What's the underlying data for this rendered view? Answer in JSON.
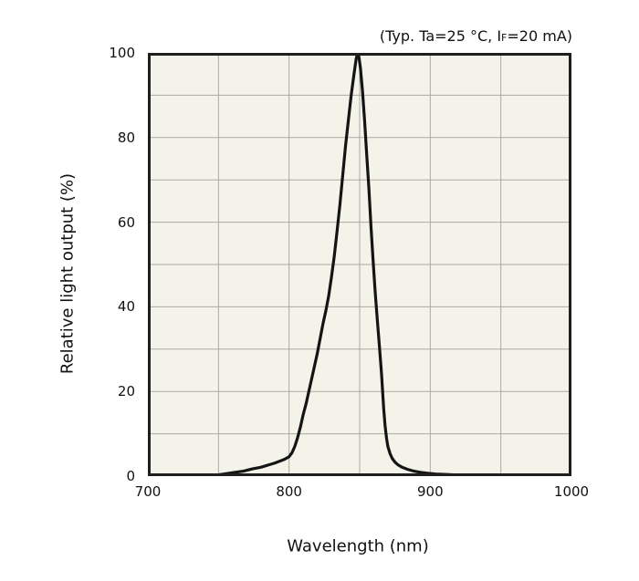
{
  "annotation": {
    "prefix": "(Typ. Ta=25 °C, I",
    "sub": "F",
    "suffix": "=20 mA)"
  },
  "chart_data": {
    "type": "line",
    "title": "(Typ. Ta=25 °C, IF=20 mA)",
    "xlabel": "Wavelength (nm)",
    "ylabel": "Relative light output (%)",
    "xlim": [
      700,
      1000
    ],
    "ylim": [
      0,
      100
    ],
    "x_tick_labels": [
      700,
      800,
      900,
      1000
    ],
    "y_tick_labels": [
      0,
      20,
      40,
      60,
      80,
      100
    ],
    "x_grid_interval_nm": 50,
    "y_grid_interval_pct": 10,
    "grid": "on",
    "legend": "none",
    "peak_wavelength_nm": 848,
    "peak_relative_output_pct": 100,
    "fwhm_nm": 29,
    "colors": {
      "plot_bg": "#f4f3ea",
      "grid": "#aaaaa2",
      "curve": "#141414",
      "border": "#1f1f1f",
      "text": "#111111"
    },
    "series": [
      {
        "name": "Relative light output",
        "points": [
          [
            738,
            0
          ],
          [
            744,
            0.1
          ],
          [
            750,
            0.3
          ],
          [
            756,
            0.6
          ],
          [
            762,
            0.9
          ],
          [
            768,
            1.2
          ],
          [
            774,
            1.7
          ],
          [
            780,
            2.1
          ],
          [
            786,
            2.7
          ],
          [
            790,
            3.1
          ],
          [
            794,
            3.6
          ],
          [
            797,
            4.0
          ],
          [
            800,
            4.6
          ],
          [
            802,
            5.5
          ],
          [
            804,
            7
          ],
          [
            806,
            9
          ],
          [
            808,
            11.5
          ],
          [
            810,
            14.5
          ],
          [
            812,
            17
          ],
          [
            814,
            20
          ],
          [
            816,
            23
          ],
          [
            818,
            26
          ],
          [
            820,
            29
          ],
          [
            822,
            32.5
          ],
          [
            824,
            36
          ],
          [
            826,
            39
          ],
          [
            828,
            42.5
          ],
          [
            830,
            47
          ],
          [
            832,
            52
          ],
          [
            834,
            58
          ],
          [
            836,
            64
          ],
          [
            838,
            71
          ],
          [
            840,
            78
          ],
          [
            842,
            84
          ],
          [
            844,
            90
          ],
          [
            846,
            95
          ],
          [
            847.5,
            98.5
          ],
          [
            848.5,
            100
          ],
          [
            849.5,
            99
          ],
          [
            850.5,
            96.5
          ],
          [
            852,
            91
          ],
          [
            853.5,
            84
          ],
          [
            855,
            76
          ],
          [
            856.5,
            68
          ],
          [
            858,
            59
          ],
          [
            859.5,
            51
          ],
          [
            861,
            43.5
          ],
          [
            862.5,
            37
          ],
          [
            864,
            30.5
          ],
          [
            865.5,
            24
          ],
          [
            867,
            16
          ],
          [
            868,
            12
          ],
          [
            869,
            9
          ],
          [
            870,
            7
          ],
          [
            871.5,
            5.3
          ],
          [
            873,
            4.2
          ],
          [
            875,
            3.3
          ],
          [
            877,
            2.7
          ],
          [
            880,
            2.1
          ],
          [
            884,
            1.6
          ],
          [
            888,
            1.2
          ],
          [
            893,
            0.9
          ],
          [
            898,
            0.7
          ],
          [
            904,
            0.5
          ],
          [
            910,
            0.4
          ],
          [
            918,
            0.28
          ],
          [
            926,
            0.18
          ],
          [
            934,
            0.1
          ],
          [
            942,
            0.04
          ],
          [
            948,
            0
          ]
        ]
      }
    ]
  }
}
